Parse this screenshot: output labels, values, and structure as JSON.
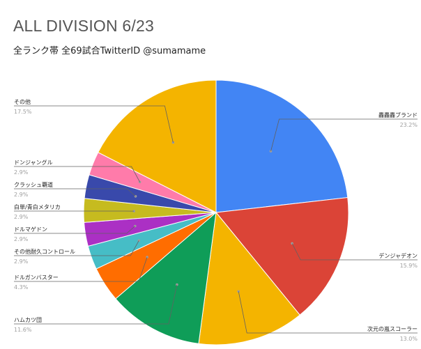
{
  "chart_data": {
    "type": "pie",
    "title": "ALL DIVISION 6/23",
    "subtitle": "全ランク帯 全69試合TwitterID @sumamame",
    "slices": [
      {
        "name": "轟轟轟ブランド",
        "value": 23.2,
        "label": "23.2%",
        "color": "#4285f4"
      },
      {
        "name": "デンジャデオン",
        "value": 15.9,
        "label": "15.9%",
        "color": "#db4437"
      },
      {
        "name": "次元の嵐スコーラー",
        "value": 13.0,
        "label": "13.0%",
        "color": "#f4b400"
      },
      {
        "name": "ハムカツ団",
        "value": 11.6,
        "label": "11.6%",
        "color": "#0f9d58"
      },
      {
        "name": "ドルガンバスター",
        "value": 4.3,
        "label": "4.3%",
        "color": "#ff6d00"
      },
      {
        "name": "その他耐久コントロール",
        "value": 2.9,
        "label": "2.9%",
        "color": "#46bdc6"
      },
      {
        "name": "ドルマゲドン",
        "value": 2.9,
        "label": "2.9%",
        "color": "#ab30c4"
      },
      {
        "name": "白単/青白メタリカ",
        "value": 2.9,
        "label": "2.9%",
        "color": "#c6bb1f"
      },
      {
        "name": "クラッシュ覇道",
        "value": 2.9,
        "label": "2.9%",
        "color": "#3949ab"
      },
      {
        "name": "ドンジャングル",
        "value": 2.9,
        "label": "2.9%",
        "color": "#ff7baa"
      },
      {
        "name": "その他",
        "value": 17.5,
        "label": "17.5%",
        "color": "#f4b400"
      }
    ]
  }
}
